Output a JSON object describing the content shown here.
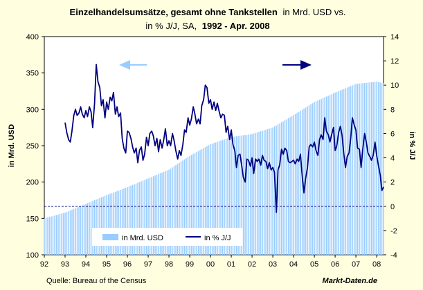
{
  "chart_data": {
    "type": "bar+line",
    "title": {
      "line1_bold": "Einzelhandelsumsätze, gesamt ohne Tankstellen",
      "line1_regular": "in Mrd. USD vs.",
      "line2_regular": "in % J/J, SA,",
      "line2_bold": "1992 - Apr. 2008"
    },
    "ylabel_left": "in Mrd. USD",
    "ylabel_right": "in % J/J",
    "ylim_left": [
      100,
      400
    ],
    "yticks_left": [
      100,
      150,
      200,
      250,
      300,
      350,
      400
    ],
    "ylim_right": [
      -4,
      14
    ],
    "yticks_right": [
      -4,
      -2,
      0,
      2,
      4,
      6,
      8,
      10,
      12,
      14
    ],
    "x_range": [
      1992,
      2008.33
    ],
    "x_tick_labels": [
      "92",
      "93",
      "94",
      "95",
      "96",
      "97",
      "98",
      "99",
      "00",
      "01",
      "02",
      "03",
      "04",
      "05",
      "06",
      "07",
      "08"
    ],
    "reference_line_right_value": 0,
    "legend": [
      "in Mrd. USD",
      "in % J/J"
    ],
    "source": "Quelle: Bureau of the Census",
    "watermark": "Markt-Daten.de",
    "colors": {
      "background": "#FFFFE0",
      "plot_area": "#FFFFFF",
      "bars": "#99CCFF",
      "line": "#000080",
      "reference_line": "#000080",
      "arrow_left": "#99CCFF",
      "arrow_right": "#000080"
    },
    "series": [
      {
        "name": "in Mrd. USD",
        "axis": "left",
        "kind": "bar",
        "anchors": [
          [
            1992.0,
            150
          ],
          [
            1993.0,
            158
          ],
          [
            1994.0,
            170
          ],
          [
            1995.0,
            182
          ],
          [
            1996.0,
            193
          ],
          [
            1997.0,
            205
          ],
          [
            1998.0,
            217
          ],
          [
            1999.0,
            236
          ],
          [
            2000.0,
            252
          ],
          [
            2001.0,
            262
          ],
          [
            2002.0,
            266
          ],
          [
            2003.0,
            275
          ],
          [
            2004.0,
            292
          ],
          [
            2005.0,
            310
          ],
          [
            2006.0,
            323
          ],
          [
            2007.0,
            335
          ],
          [
            2008.0,
            338
          ],
          [
            2008.33,
            336
          ]
        ]
      },
      {
        "name": "in % J/J",
        "axis": "right",
        "kind": "line",
        "points": [
          [
            1993.0,
            6.9
          ],
          [
            1993.08,
            6.1
          ],
          [
            1993.17,
            5.5
          ],
          [
            1993.25,
            5.3
          ],
          [
            1993.33,
            6.2
          ],
          [
            1993.42,
            7.5
          ],
          [
            1993.5,
            8.0
          ],
          [
            1993.58,
            7.5
          ],
          [
            1993.67,
            7.7
          ],
          [
            1993.75,
            8.2
          ],
          [
            1993.83,
            7.6
          ],
          [
            1993.92,
            7.3
          ],
          [
            1994.0,
            7.9
          ],
          [
            1994.08,
            7.4
          ],
          [
            1994.17,
            8.2
          ],
          [
            1994.25,
            7.8
          ],
          [
            1994.33,
            6.5
          ],
          [
            1994.42,
            8.5
          ],
          [
            1994.5,
            11.7
          ],
          [
            1994.58,
            10.3
          ],
          [
            1994.67,
            9.8
          ],
          [
            1994.75,
            8.3
          ],
          [
            1994.83,
            8.8
          ],
          [
            1994.92,
            7.3
          ],
          [
            1995.0,
            8.6
          ],
          [
            1995.08,
            8.0
          ],
          [
            1995.17,
            9.0
          ],
          [
            1995.25,
            8.7
          ],
          [
            1995.33,
            9.4
          ],
          [
            1995.42,
            7.6
          ],
          [
            1995.5,
            8.2
          ],
          [
            1995.58,
            7.4
          ],
          [
            1995.67,
            7.7
          ],
          [
            1995.75,
            5.6
          ],
          [
            1995.83,
            4.8
          ],
          [
            1995.92,
            4.4
          ],
          [
            1996.0,
            6.2
          ],
          [
            1996.08,
            6.1
          ],
          [
            1996.17,
            5.6
          ],
          [
            1996.25,
            4.9
          ],
          [
            1996.33,
            4.4
          ],
          [
            1996.42,
            4.8
          ],
          [
            1996.5,
            3.6
          ],
          [
            1996.58,
            4.6
          ],
          [
            1996.67,
            4.9
          ],
          [
            1996.75,
            3.8
          ],
          [
            1996.83,
            4.3
          ],
          [
            1996.92,
            5.7
          ],
          [
            1997.0,
            5.0
          ],
          [
            1997.08,
            6.0
          ],
          [
            1997.17,
            6.2
          ],
          [
            1997.25,
            5.8
          ],
          [
            1997.33,
            5.0
          ],
          [
            1997.42,
            5.6
          ],
          [
            1997.5,
            4.5
          ],
          [
            1997.58,
            5.5
          ],
          [
            1997.67,
            4.8
          ],
          [
            1997.75,
            5.5
          ],
          [
            1997.83,
            6.4
          ],
          [
            1997.92,
            5.0
          ],
          [
            1998.0,
            5.4
          ],
          [
            1998.08,
            5.0
          ],
          [
            1998.17,
            6.0
          ],
          [
            1998.25,
            5.4
          ],
          [
            1998.33,
            4.6
          ],
          [
            1998.42,
            3.9
          ],
          [
            1998.5,
            4.6
          ],
          [
            1998.58,
            4.2
          ],
          [
            1998.67,
            5.1
          ],
          [
            1998.75,
            6.3
          ],
          [
            1998.83,
            6.1
          ],
          [
            1998.92,
            7.3
          ],
          [
            1999.0,
            6.7
          ],
          [
            1999.08,
            7.2
          ],
          [
            1999.17,
            8.2
          ],
          [
            1999.25,
            7.6
          ],
          [
            1999.33,
            6.8
          ],
          [
            1999.42,
            7.2
          ],
          [
            1999.5,
            6.8
          ],
          [
            1999.58,
            8.3
          ],
          [
            1999.67,
            8.8
          ],
          [
            1999.75,
            10.0
          ],
          [
            1999.83,
            9.8
          ],
          [
            1999.92,
            8.5
          ],
          [
            2000.0,
            8.8
          ],
          [
            2000.08,
            8.0
          ],
          [
            2000.17,
            8.6
          ],
          [
            2000.25,
            7.9
          ],
          [
            2000.33,
            8.5
          ],
          [
            2000.42,
            7.8
          ],
          [
            2000.5,
            7.3
          ],
          [
            2000.58,
            7.6
          ],
          [
            2000.67,
            7.5
          ],
          [
            2000.75,
            6.1
          ],
          [
            2000.83,
            6.6
          ],
          [
            2000.92,
            5.5
          ],
          [
            2001.0,
            6.3
          ],
          [
            2001.08,
            5.1
          ],
          [
            2001.17,
            4.6
          ],
          [
            2001.25,
            3.2
          ],
          [
            2001.33,
            4.2
          ],
          [
            2001.42,
            4.3
          ],
          [
            2001.5,
            3.4
          ],
          [
            2001.58,
            2.4
          ],
          [
            2001.67,
            2.0
          ],
          [
            2001.75,
            3.9
          ],
          [
            2001.83,
            3.8
          ],
          [
            2001.92,
            3.3
          ],
          [
            2002.0,
            4.0
          ],
          [
            2002.08,
            2.7
          ],
          [
            2002.17,
            3.9
          ],
          [
            2002.25,
            3.7
          ],
          [
            2002.33,
            3.9
          ],
          [
            2002.42,
            3.4
          ],
          [
            2002.5,
            4.2
          ],
          [
            2002.58,
            3.8
          ],
          [
            2002.67,
            3.7
          ],
          [
            2002.75,
            3.1
          ],
          [
            2002.83,
            3.6
          ],
          [
            2002.92,
            3.0
          ],
          [
            2003.0,
            3.2
          ],
          [
            2003.08,
            2.8
          ],
          [
            2003.17,
            -0.5
          ],
          [
            2003.25,
            3.0
          ],
          [
            2003.33,
            3.4
          ],
          [
            2003.42,
            4.7
          ],
          [
            2003.5,
            4.3
          ],
          [
            2003.58,
            4.8
          ],
          [
            2003.67,
            4.6
          ],
          [
            2003.75,
            3.7
          ],
          [
            2003.83,
            3.6
          ],
          [
            2003.92,
            3.7
          ],
          [
            2004.0,
            3.8
          ],
          [
            2004.08,
            3.5
          ],
          [
            2004.17,
            3.9
          ],
          [
            2004.25,
            3.7
          ],
          [
            2004.33,
            4.3
          ],
          [
            2004.42,
            2.4
          ],
          [
            2004.5,
            1.1
          ],
          [
            2004.58,
            2.3
          ],
          [
            2004.67,
            3.2
          ],
          [
            2004.75,
            4.9
          ],
          [
            2004.83,
            5.1
          ],
          [
            2004.92,
            4.9
          ],
          [
            2005.0,
            5.3
          ],
          [
            2005.08,
            4.6
          ],
          [
            2005.17,
            4.2
          ],
          [
            2005.25,
            5.5
          ],
          [
            2005.33,
            5.9
          ],
          [
            2005.42,
            5.5
          ],
          [
            2005.5,
            7.3
          ],
          [
            2005.58,
            6.2
          ],
          [
            2005.67,
            5.9
          ],
          [
            2005.75,
            5.3
          ],
          [
            2005.83,
            5.9
          ],
          [
            2005.92,
            6.5
          ],
          [
            2006.0,
            4.6
          ],
          [
            2006.08,
            5.0
          ],
          [
            2006.17,
            6.1
          ],
          [
            2006.25,
            6.6
          ],
          [
            2006.33,
            5.9
          ],
          [
            2006.42,
            4.3
          ],
          [
            2006.5,
            3.2
          ],
          [
            2006.58,
            4.1
          ],
          [
            2006.67,
            4.4
          ],
          [
            2006.75,
            5.6
          ],
          [
            2006.83,
            7.3
          ],
          [
            2006.92,
            6.7
          ],
          [
            2007.0,
            6.3
          ],
          [
            2007.08,
            4.8
          ],
          [
            2007.17,
            4.7
          ],
          [
            2007.25,
            3.2
          ],
          [
            2007.33,
            4.7
          ],
          [
            2007.42,
            6.0
          ],
          [
            2007.5,
            5.3
          ],
          [
            2007.58,
            4.4
          ],
          [
            2007.67,
            4.1
          ],
          [
            2007.75,
            3.8
          ],
          [
            2007.83,
            4.2
          ],
          [
            2007.92,
            5.3
          ],
          [
            2008.0,
            4.2
          ],
          [
            2008.08,
            3.4
          ],
          [
            2008.17,
            2.6
          ],
          [
            2008.25,
            1.3
          ],
          [
            2008.33,
            1.6
          ]
        ]
      }
    ]
  }
}
